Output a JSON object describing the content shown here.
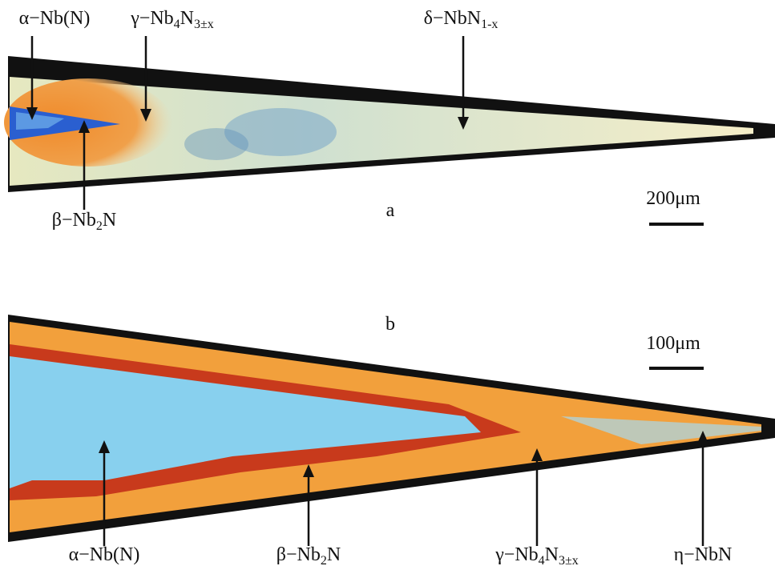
{
  "panels": [
    {
      "letter": "a",
      "scale": "200μm",
      "labels": [
        {
          "parts": [
            "α−Nb(N)"
          ]
        },
        {
          "parts": [
            "γ−Nb",
            "4",
            "N",
            "3±x"
          ]
        },
        {
          "parts": [
            "δ−NbN",
            "1-x"
          ]
        },
        {
          "parts": [
            "β−Nb",
            "2",
            "N"
          ]
        }
      ]
    },
    {
      "letter": "b",
      "scale": "100μm",
      "labels": [
        {
          "parts": [
            "α−Nb(N)"
          ]
        },
        {
          "parts": [
            "β−Nb",
            "2",
            "N"
          ]
        },
        {
          "parts": [
            "γ−Nb",
            "4",
            "N",
            "3±x"
          ]
        },
        {
          "parts": [
            "η−NbN"
          ]
        }
      ]
    }
  ]
}
